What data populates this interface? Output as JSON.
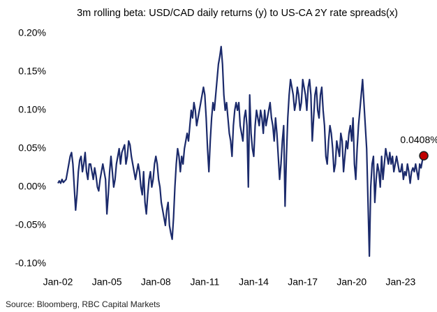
{
  "chart_data": {
    "type": "line",
    "title": "3m rolling beta: USD/CAD daily returns (y) to US-CA 2Y rate spreads(x)",
    "source": "Source: Bloomberg, RBC Capital Markets",
    "x": [
      "2002-01",
      "2002-02",
      "2002-03",
      "2002-04",
      "2002-05",
      "2002-06",
      "2002-07",
      "2002-08",
      "2002-09",
      "2002-10",
      "2002-11",
      "2002-12",
      "2003-01",
      "2003-02",
      "2003-03",
      "2003-04",
      "2003-05",
      "2003-06",
      "2003-07",
      "2003-08",
      "2003-09",
      "2003-10",
      "2003-11",
      "2003-12",
      "2004-01",
      "2004-02",
      "2004-03",
      "2004-04",
      "2004-05",
      "2004-06",
      "2004-07",
      "2004-08",
      "2004-09",
      "2004-10",
      "2004-11",
      "2004-12",
      "2005-01",
      "2005-02",
      "2005-03",
      "2005-04",
      "2005-05",
      "2005-06",
      "2005-07",
      "2005-08",
      "2005-09",
      "2005-10",
      "2005-11",
      "2005-12",
      "2006-01",
      "2006-02",
      "2006-03",
      "2006-04",
      "2006-05",
      "2006-06",
      "2006-07",
      "2006-08",
      "2006-09",
      "2006-10",
      "2006-11",
      "2006-12",
      "2007-01",
      "2007-02",
      "2007-03",
      "2007-04",
      "2007-05",
      "2007-06",
      "2007-07",
      "2007-08",
      "2007-09",
      "2007-10",
      "2007-11",
      "2007-12",
      "2008-01",
      "2008-02",
      "2008-03",
      "2008-04",
      "2008-05",
      "2008-06",
      "2008-07",
      "2008-08",
      "2008-09",
      "2008-10",
      "2008-11",
      "2008-12",
      "2009-01",
      "2009-02",
      "2009-03",
      "2009-04",
      "2009-05",
      "2009-06",
      "2009-07",
      "2009-08",
      "2009-09",
      "2009-10",
      "2009-11",
      "2009-12",
      "2010-01",
      "2010-02",
      "2010-03",
      "2010-04",
      "2010-05",
      "2010-06",
      "2010-07",
      "2010-08",
      "2010-09",
      "2010-10",
      "2010-11",
      "2010-12",
      "2011-01",
      "2011-02",
      "2011-03",
      "2011-04",
      "2011-05",
      "2011-06",
      "2011-07",
      "2011-08",
      "2011-09",
      "2011-10",
      "2011-11",
      "2011-12",
      "2012-01",
      "2012-02",
      "2012-03",
      "2012-04",
      "2012-05",
      "2012-06",
      "2012-07",
      "2012-08",
      "2012-09",
      "2012-10",
      "2012-11",
      "2012-12",
      "2013-01",
      "2013-02",
      "2013-03",
      "2013-04",
      "2013-05",
      "2013-06",
      "2013-07",
      "2013-08",
      "2013-09",
      "2013-10",
      "2013-11",
      "2013-12",
      "2014-01",
      "2014-02",
      "2014-03",
      "2014-04",
      "2014-05",
      "2014-06",
      "2014-07",
      "2014-08",
      "2014-09",
      "2014-10",
      "2014-11",
      "2014-12",
      "2015-01",
      "2015-02",
      "2015-03",
      "2015-04",
      "2015-05",
      "2015-06",
      "2015-07",
      "2015-08",
      "2015-09",
      "2015-10",
      "2015-11",
      "2015-12",
      "2016-01",
      "2016-02",
      "2016-03",
      "2016-04",
      "2016-05",
      "2016-06",
      "2016-07",
      "2016-08",
      "2016-09",
      "2016-10",
      "2016-11",
      "2016-12",
      "2017-01",
      "2017-02",
      "2017-03",
      "2017-04",
      "2017-05",
      "2017-06",
      "2017-07",
      "2017-08",
      "2017-09",
      "2017-10",
      "2017-11",
      "2017-12",
      "2018-01",
      "2018-02",
      "2018-03",
      "2018-04",
      "2018-05",
      "2018-06",
      "2018-07",
      "2018-08",
      "2018-09",
      "2018-10",
      "2018-11",
      "2018-12",
      "2019-01",
      "2019-02",
      "2019-03",
      "2019-04",
      "2019-05",
      "2019-06",
      "2019-07",
      "2019-08",
      "2019-09",
      "2019-10",
      "2019-11",
      "2019-12",
      "2020-01",
      "2020-02",
      "2020-03",
      "2020-04",
      "2020-05",
      "2020-06",
      "2020-07",
      "2020-08",
      "2020-09",
      "2020-10",
      "2020-11",
      "2020-12",
      "2021-01",
      "2021-02",
      "2021-03",
      "2021-04",
      "2021-05",
      "2021-06",
      "2021-07",
      "2021-08",
      "2021-09",
      "2021-10",
      "2021-11",
      "2021-12",
      "2022-01",
      "2022-02",
      "2022-03",
      "2022-04",
      "2022-05",
      "2022-06",
      "2022-07",
      "2022-08",
      "2022-09",
      "2022-10",
      "2022-11",
      "2022-12",
      "2023-01",
      "2023-02",
      "2023-03",
      "2023-04",
      "2023-05",
      "2023-06",
      "2023-07",
      "2023-08",
      "2023-09",
      "2023-10",
      "2023-11",
      "2023-12",
      "2024-01",
      "2024-02",
      "2024-03",
      "2024-04",
      "2024-05",
      "2024-06"
    ],
    "series": [
      {
        "name": "3m rolling beta",
        "color": "#1b2a6b",
        "values": [
          0.005,
          0.008,
          0.005,
          0.01,
          0.006,
          0.008,
          0.01,
          0.02,
          0.03,
          0.04,
          0.045,
          0.03,
          0.0,
          -0.03,
          -0.01,
          0.02,
          0.035,
          0.04,
          0.02,
          0.03,
          0.045,
          0.02,
          0.01,
          0.03,
          0.03,
          0.02,
          0.01,
          0.025,
          0.015,
          0.0,
          -0.005,
          0.01,
          0.02,
          0.03,
          0.02,
          0.01,
          -0.035,
          -0.01,
          0.02,
          0.04,
          0.02,
          0.0,
          0.01,
          0.03,
          0.04,
          0.05,
          0.03,
          0.045,
          0.05,
          0.055,
          0.03,
          0.04,
          0.06,
          0.055,
          0.04,
          0.03,
          0.02,
          0.01,
          0.02,
          0.03,
          0.02,
          0.0,
          -0.01,
          0.02,
          -0.02,
          -0.035,
          -0.01,
          0.01,
          0.02,
          0.0,
          0.01,
          0.03,
          0.04,
          0.03,
          0.01,
          0.0,
          -0.02,
          -0.03,
          -0.04,
          -0.05,
          -0.03,
          -0.02,
          -0.05,
          -0.06,
          -0.068,
          -0.04,
          0.0,
          0.03,
          0.05,
          0.04,
          0.02,
          0.04,
          0.03,
          0.05,
          0.06,
          0.07,
          0.06,
          0.08,
          0.1,
          0.09,
          0.11,
          0.1,
          0.08,
          0.09,
          0.1,
          0.11,
          0.12,
          0.13,
          0.12,
          0.09,
          0.05,
          0.02,
          0.06,
          0.09,
          0.11,
          0.1,
          0.12,
          0.14,
          0.16,
          0.17,
          0.183,
          0.16,
          0.12,
          0.1,
          0.11,
          0.09,
          0.07,
          0.06,
          0.04,
          0.08,
          0.1,
          0.11,
          0.1,
          0.11,
          0.08,
          0.07,
          0.06,
          0.09,
          0.1,
          0.08,
          0.0,
          0.12,
          0.07,
          0.05,
          0.04,
          0.08,
          0.1,
          0.09,
          0.08,
          0.1,
          0.09,
          0.07,
          0.1,
          0.08,
          0.09,
          0.1,
          0.11,
          0.09,
          0.08,
          0.06,
          0.09,
          0.07,
          0.04,
          0.01,
          0.03,
          0.06,
          0.08,
          -0.025,
          0.04,
          0.09,
          0.12,
          0.14,
          0.13,
          0.12,
          0.1,
          0.11,
          0.13,
          0.12,
          0.1,
          0.11,
          0.14,
          0.13,
          0.12,
          0.1,
          0.13,
          0.14,
          0.12,
          0.06,
          0.09,
          0.12,
          0.13,
          0.1,
          0.09,
          0.12,
          0.13,
          0.1,
          0.08,
          0.04,
          0.03,
          0.06,
          0.08,
          0.07,
          0.05,
          0.02,
          0.03,
          0.06,
          0.05,
          0.04,
          0.07,
          0.06,
          0.02,
          0.04,
          0.06,
          0.05,
          0.07,
          0.08,
          0.06,
          0.09,
          0.03,
          0.01,
          0.05,
          0.08,
          0.1,
          0.12,
          0.14,
          0.11,
          0.08,
          0.05,
          -0.02,
          -0.09,
          0.0,
          0.03,
          0.04,
          -0.02,
          0.01,
          0.03,
          0.02,
          0.0,
          0.04,
          0.01,
          0.03,
          0.05,
          0.04,
          0.03,
          0.045,
          0.03,
          0.04,
          0.02,
          0.03,
          0.04,
          0.03,
          0.02,
          0.02,
          0.03,
          0.01,
          0.02,
          0.015,
          0.03,
          0.02,
          0.005,
          0.02,
          0.025,
          0.02,
          0.03,
          0.02,
          0.01,
          0.03,
          0.025,
          0.035,
          0.0408
        ]
      }
    ],
    "annotations": [
      {
        "x": "2024-06",
        "value": 0.0408,
        "label": "0.0408%",
        "color": "#c00000"
      }
    ],
    "xlim": [
      "2002-01",
      "2024-07"
    ],
    "xticks": [
      {
        "value": "2002-01",
        "label": "Jan-02"
      },
      {
        "value": "2005-01",
        "label": "Jan-05"
      },
      {
        "value": "2008-01",
        "label": "Jan-08"
      },
      {
        "value": "2011-01",
        "label": "Jan-11"
      },
      {
        "value": "2014-01",
        "label": "Jan-14"
      },
      {
        "value": "2017-01",
        "label": "Jan-17"
      },
      {
        "value": "2020-01",
        "label": "Jan-20"
      },
      {
        "value": "2023-01",
        "label": "Jan-23"
      }
    ],
    "ylim": [
      -0.1,
      0.2
    ],
    "yticks": [
      {
        "value": 0.2,
        "label": "0.20%"
      },
      {
        "value": 0.15,
        "label": "0.15%"
      },
      {
        "value": 0.1,
        "label": "0.10%"
      },
      {
        "value": 0.05,
        "label": "0.05%"
      },
      {
        "value": 0,
        "label": "0.00%"
      },
      {
        "value": -0.05,
        "label": "-0.05%"
      },
      {
        "value": -0.1,
        "label": "-0.10%"
      }
    ],
    "grid": false
  }
}
